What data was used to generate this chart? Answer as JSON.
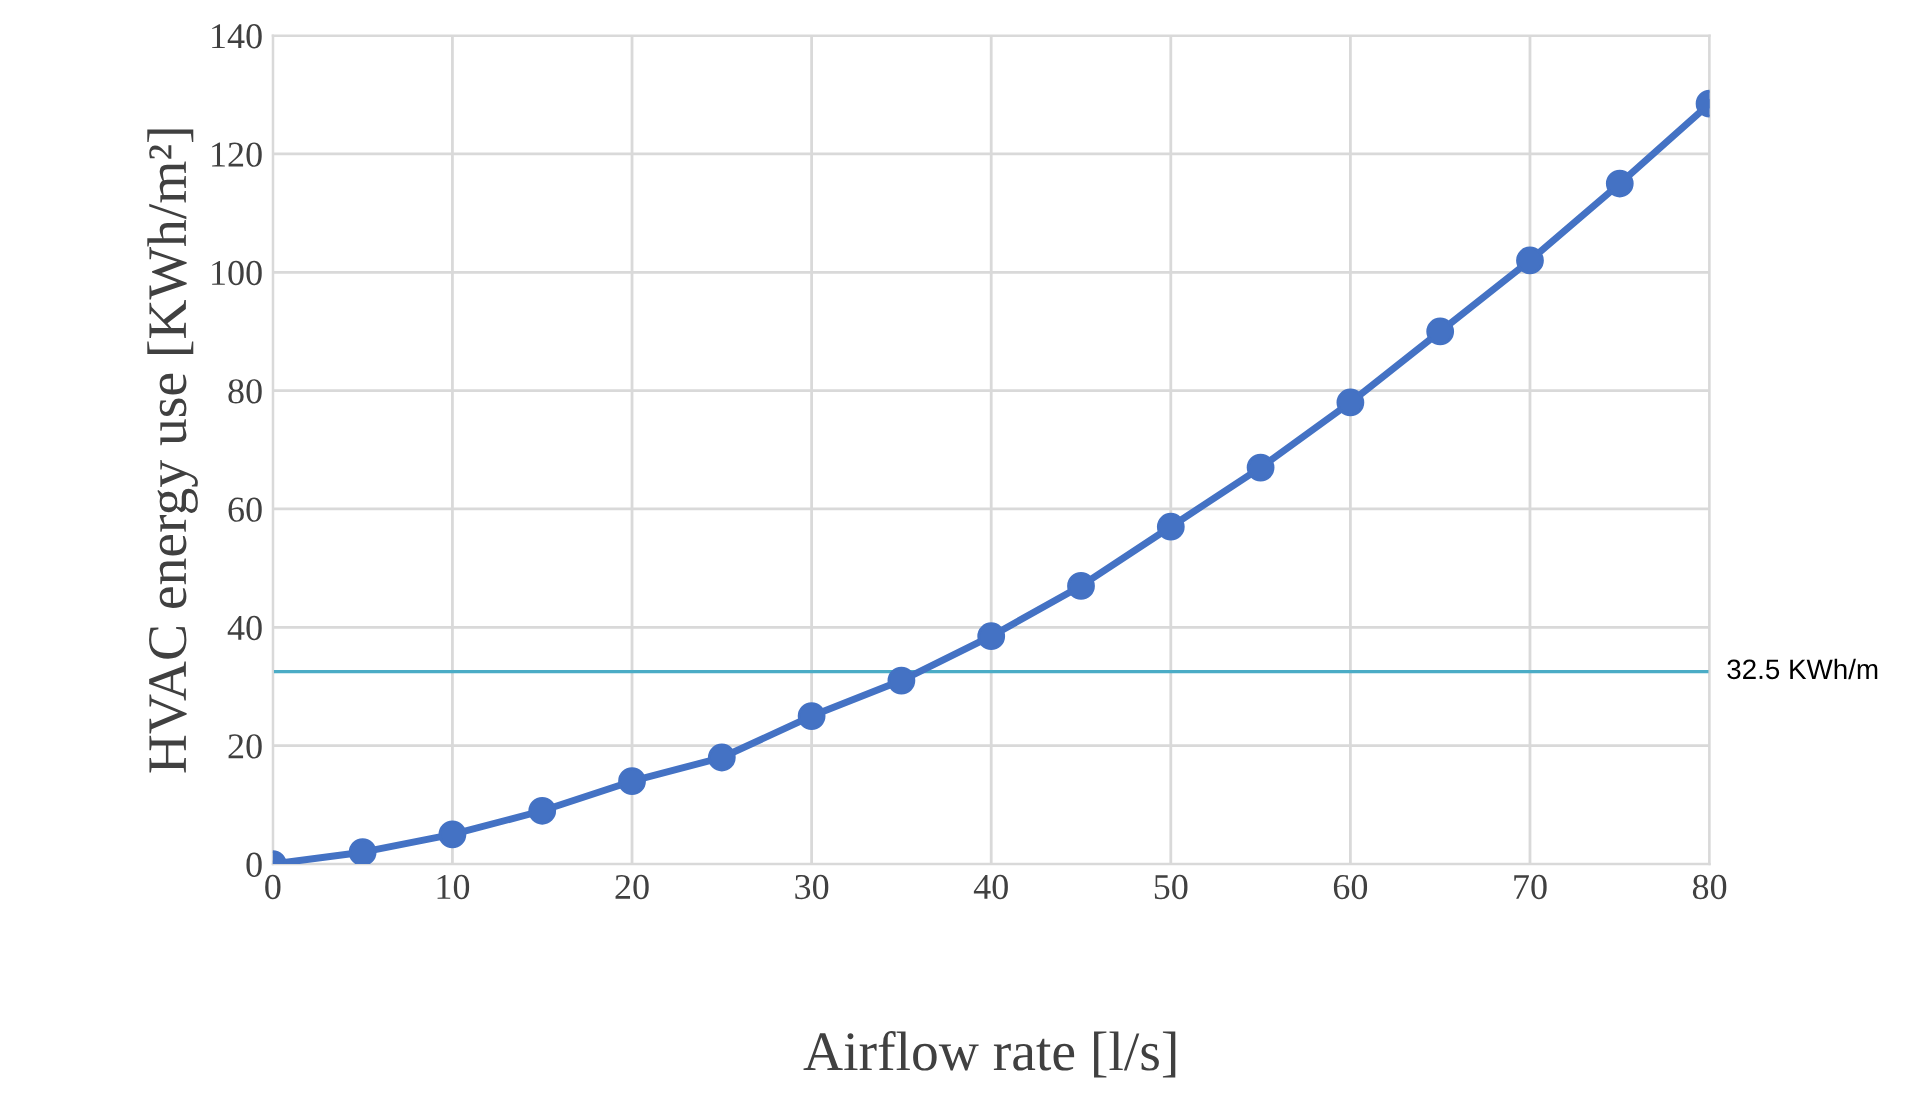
{
  "chart_data": {
    "type": "line",
    "xlabel": "Airflow rate [l/s]",
    "ylabel": "HVAC energy use [KWh/m²]",
    "x": [
      0,
      5,
      10,
      15,
      20,
      25,
      30,
      35,
      40,
      45,
      50,
      55,
      60,
      65,
      70,
      75,
      80
    ],
    "series": [
      {
        "color": "#4472c4",
        "values": [
          0,
          2,
          5,
          9,
          14,
          18,
          25,
          31,
          38.5,
          47,
          57,
          67,
          78,
          90,
          102,
          115,
          128.5
        ]
      }
    ],
    "xlim": [
      0,
      80
    ],
    "xticks": [
      0,
      10,
      20,
      30,
      40,
      50,
      60,
      70,
      80
    ],
    "ylim": [
      0,
      140
    ],
    "yticks": [
      0,
      20,
      40,
      60,
      80,
      100,
      120,
      140
    ],
    "ref_lines": [
      {
        "axis": "y",
        "value": 32.5,
        "label": "32.5 KWh/m",
        "color": "#4bacc6"
      }
    ],
    "grid": true,
    "marker": "circle",
    "line_style": "solid",
    "legend": false
  }
}
